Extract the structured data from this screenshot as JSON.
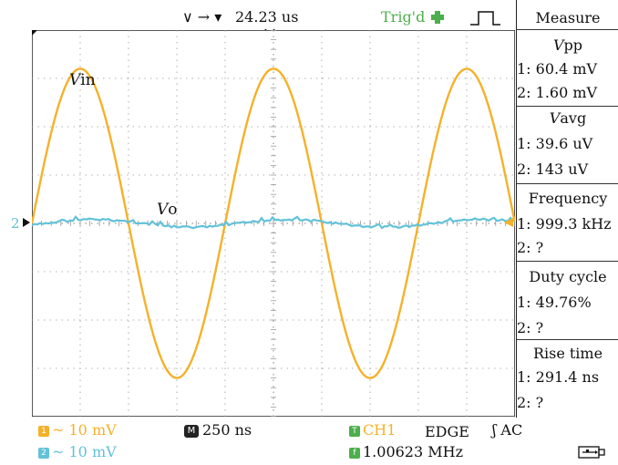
{
  "colors": {
    "ch1": "#f5b12a",
    "ch2": "#62c2d8",
    "trig": "#4cae4c",
    "grid": "#9a9a9a"
  },
  "header": {
    "arrows_label": "∨ → ▾",
    "time_offset": "24.23 us",
    "trig_status": "Trig'd"
  },
  "waveform_labels": {
    "vin_prefix": "V",
    "vin_suffix": "in",
    "vo_prefix": "V",
    "vo_suffix": "o",
    "ch2_marker": "2"
  },
  "measure": {
    "title": "Measure",
    "vpp": {
      "label_prefix": "V",
      "label_suffix": "pp",
      "ch1": "1: 60.4 mV",
      "ch2": "2: 1.60 mV"
    },
    "vavg": {
      "label_prefix": "V",
      "label_suffix": "avg",
      "ch1": "1: 39.6 uV",
      "ch2": "2: 143 uV"
    },
    "frequency": {
      "label": "Frequency",
      "ch1": "1: 999.3 kHz",
      "ch2": "2: ?"
    },
    "duty": {
      "label": "Duty cycle",
      "ch1": "1: 49.76%",
      "ch2": "2: ?"
    },
    "rise": {
      "label": "Rise time",
      "ch1": "1: 291.4 ns",
      "ch2": "2: ?"
    }
  },
  "footer": {
    "ch1_badge": "1",
    "ch1_scale": "~ 10 mV",
    "ch2_badge": "2",
    "ch2_scale": "~ 10 mV",
    "timebase_badge": "M",
    "timebase": "250 ns",
    "trig_badge": "T",
    "trig_source": "CH1",
    "trig_mode": "EDGE",
    "trig_coupling": "ʃ AC",
    "freq_badge": "f",
    "freq_counter": "1.00623 MHz"
  },
  "waveform": {
    "ch1_amplitude_div": 3.2,
    "ch1_period_div": 4.0,
    "ch1_phase_div": 1.0,
    "ch2_amplitude_div": 0.08
  }
}
